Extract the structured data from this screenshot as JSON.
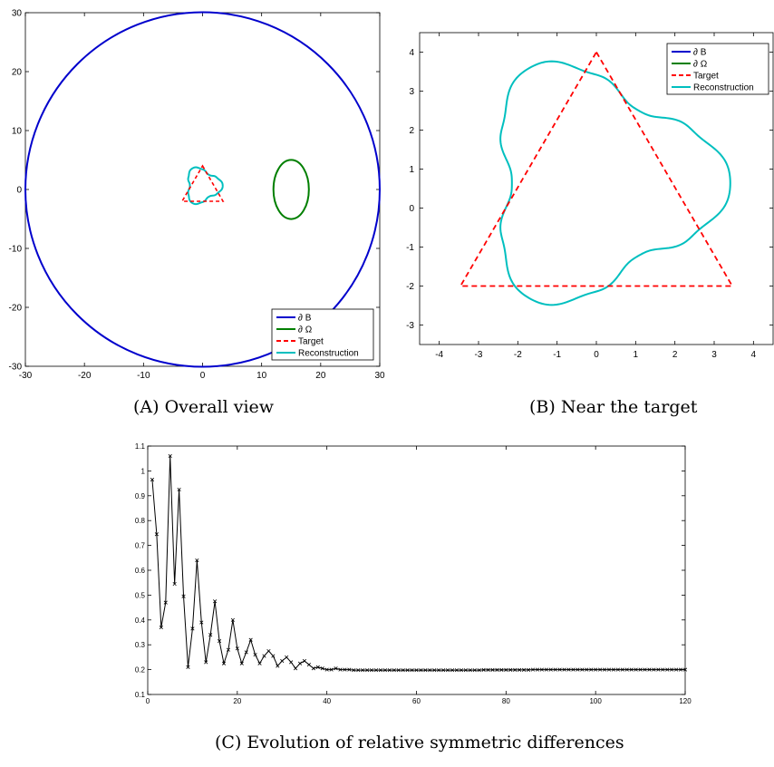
{
  "captions": {
    "a": "(A) Overall view",
    "b": "(B) Near the target",
    "c": "(C) Evolution of relative symmetric differences"
  },
  "colors": {
    "boundary_B": "#0000cc",
    "boundary_Omega": "#007f00",
    "target": "#ff0000",
    "reconstruction": "#00bfbf",
    "error_line": "#000000"
  },
  "chart_data": [
    {
      "id": "a",
      "type": "line",
      "xlim": [
        -30,
        30
      ],
      "ylim": [
        -30,
        30
      ],
      "xticks": [
        -30,
        -20,
        -10,
        0,
        10,
        20,
        30
      ],
      "yticks": [
        -30,
        -20,
        -10,
        0,
        10,
        20,
        30
      ],
      "legend": [
        "∂ B",
        "∂ Ω",
        "Target",
        "Reconstruction"
      ],
      "legend_position": "bottom-right",
      "shapes": {
        "boundary_B": {
          "center": [
            0,
            0
          ],
          "radius": 30
        },
        "boundary_Omega": {
          "center": [
            15,
            0
          ],
          "rx": 3,
          "ry": 5
        },
        "target_triangle": [
          [
            0,
            4
          ],
          [
            3.46,
            -2
          ],
          [
            -3.46,
            -2
          ]
        ]
      }
    },
    {
      "id": "b",
      "type": "line",
      "xlim": [
        -4.5,
        4.5
      ],
      "ylim": [
        -3.5,
        4.5
      ],
      "xticks": [
        -4,
        -3,
        -2,
        -1,
        0,
        1,
        2,
        3,
        4
      ],
      "yticks": [
        -3,
        -2,
        -1,
        0,
        1,
        2,
        3,
        4
      ],
      "legend": [
        "∂ B",
        "∂ Ω",
        "Target",
        "Reconstruction"
      ],
      "legend_position": "top-right",
      "target_triangle": [
        [
          0,
          4
        ],
        [
          3.46,
          -2
        ],
        [
          -3.46,
          -2
        ]
      ]
    },
    {
      "id": "c",
      "type": "line",
      "xlim": [
        0,
        120
      ],
      "ylim": [
        0.1,
        1.1
      ],
      "xticks": [
        0,
        20,
        40,
        60,
        80,
        100,
        120
      ],
      "yticks": [
        0.1,
        0.2,
        0.3,
        0.4,
        0.5,
        0.6,
        0.7,
        0.8,
        0.9,
        1,
        1.1
      ],
      "ytick_labels": [
        "0.1",
        "0.2",
        "0.3",
        "0.4",
        "0.5",
        "0.6",
        "0.7",
        "0.8",
        "0.9",
        "1",
        "1.1"
      ],
      "marker": "x",
      "x_start": 1,
      "values": [
        0.965,
        0.745,
        0.37,
        0.47,
        1.06,
        0.545,
        0.925,
        0.495,
        0.21,
        0.365,
        0.64,
        0.39,
        0.23,
        0.34,
        0.475,
        0.315,
        0.225,
        0.28,
        0.4,
        0.285,
        0.225,
        0.27,
        0.32,
        0.26,
        0.225,
        0.255,
        0.275,
        0.255,
        0.215,
        0.235,
        0.25,
        0.23,
        0.205,
        0.225,
        0.235,
        0.22,
        0.205,
        0.21,
        0.205,
        0.2,
        0.2,
        0.205,
        0.2,
        0.2,
        0.2,
        0.198,
        0.198,
        0.198,
        0.198,
        0.198,
        0.198,
        0.198,
        0.198,
        0.198,
        0.198,
        0.198,
        0.198,
        0.198,
        0.198,
        0.198,
        0.198,
        0.198,
        0.198,
        0.198,
        0.198,
        0.198,
        0.198,
        0.198,
        0.198,
        0.198,
        0.198,
        0.198,
        0.198,
        0.198,
        0.199,
        0.199,
        0.199,
        0.199,
        0.199,
        0.199,
        0.199,
        0.199,
        0.199,
        0.199,
        0.199,
        0.2,
        0.2,
        0.2,
        0.2,
        0.2,
        0.2,
        0.2,
        0.2,
        0.2,
        0.2,
        0.2,
        0.2,
        0.2,
        0.2,
        0.2,
        0.2,
        0.2,
        0.2,
        0.2,
        0.2,
        0.2,
        0.2,
        0.2,
        0.2,
        0.2,
        0.2,
        0.2,
        0.2,
        0.2,
        0.2,
        0.2,
        0.2,
        0.2,
        0.2,
        0.2
      ]
    }
  ]
}
